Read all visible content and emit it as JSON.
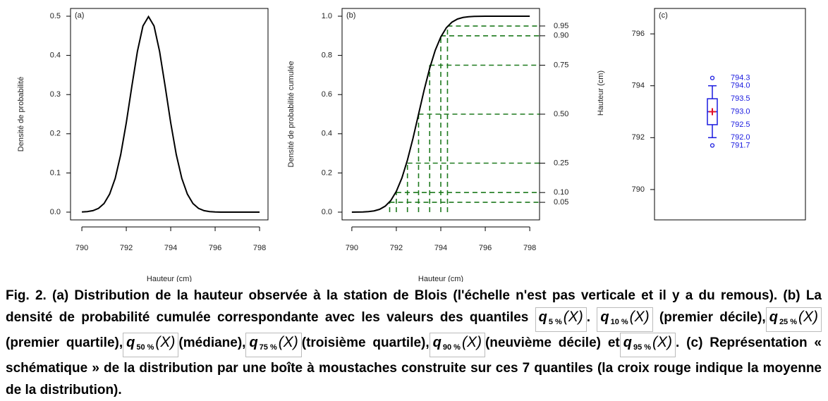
{
  "chart_data": [
    {
      "type": "line",
      "panel_label": "(a)",
      "xlabel": "Hauteur (cm)",
      "ylabel": "Densité de probabilité",
      "x": [
        790,
        790.25,
        790.5,
        790.75,
        791,
        791.25,
        791.5,
        791.75,
        792,
        792.25,
        792.5,
        792.75,
        793,
        793.25,
        793.5,
        793.75,
        794,
        794.25,
        794.5,
        794.75,
        795,
        795.25,
        795.5,
        795.75,
        796,
        796.25,
        796.5,
        796.75,
        797,
        797.25,
        797.5,
        797.75,
        798
      ],
      "values": [
        0.0004,
        0.0014,
        0.0038,
        0.0096,
        0.022,
        0.046,
        0.086,
        0.147,
        0.228,
        0.321,
        0.41,
        0.475,
        0.499,
        0.475,
        0.41,
        0.321,
        0.228,
        0.147,
        0.086,
        0.046,
        0.022,
        0.0096,
        0.0038,
        0.0014,
        0.0004,
        0,
        0,
        0,
        0,
        0,
        0,
        0,
        0
      ],
      "color": "#000000",
      "xlim": [
        789.49,
        798.38
      ],
      "ylim": [
        -0.0198,
        0.5198
      ],
      "xticks": [
        790,
        792,
        794,
        796,
        798
      ],
      "yticks": [
        {
          "value": 0,
          "label": "0.0"
        },
        0.1,
        0.2,
        0.3,
        0.4,
        0.5
      ]
    },
    {
      "type": "line",
      "panel_label": "(b)",
      "xlabel": "Hauteur (cm)",
      "ylabel": "Densité de probabilité cumulée",
      "x": [
        790,
        790.25,
        790.5,
        790.75,
        791,
        791.25,
        791.5,
        791.75,
        792,
        792.25,
        792.5,
        792.75,
        793,
        793.25,
        793.5,
        793.75,
        794,
        794.25,
        794.5,
        794.75,
        795,
        795.25,
        795.5,
        795.75,
        796,
        796.25,
        796.5,
        796.75,
        797,
        797.25,
        797.5,
        797.75,
        798
      ],
      "values": [
        0.0001,
        0.0003,
        0.0009,
        0.0025,
        0.0062,
        0.0143,
        0.0304,
        0.059,
        0.106,
        0.174,
        0.266,
        0.377,
        0.5,
        0.623,
        0.734,
        0.826,
        0.894,
        0.941,
        0.9696,
        0.9857,
        0.9938,
        0.9975,
        0.9991,
        0.9997,
        0.9999,
        1,
        1,
        1,
        1,
        1,
        1,
        1,
        1
      ],
      "color": "#000000",
      "quantile_x": [
        791.7,
        792,
        792.5,
        793,
        793.5,
        794,
        794.3
      ],
      "quantile_color": "#1e7a1e",
      "xlim": [
        789.56,
        798.44
      ],
      "ylim": [
        -0.0396,
        1.0396
      ],
      "y2lim": [
        -0.0396,
        1.0396
      ],
      "xticks": [
        790,
        792,
        794,
        796,
        798
      ],
      "yticks": [
        {
          "value": 0,
          "label": "0.0"
        },
        0.2,
        0.4,
        0.6,
        0.8,
        {
          "value": 1,
          "label": "1.0"
        }
      ],
      "y2ticks": [
        0.05,
        {
          "value": 0.1,
          "label": "0.10"
        },
        0.25,
        {
          "value": 0.5,
          "label": "0.50"
        },
        0.75,
        {
          "value": 0.9,
          "label": "0.90"
        },
        0.95
      ]
    },
    {
      "type": "box",
      "panel_label": "(c)",
      "ylabel": "Hauteur (cm)",
      "values": [
        791.7,
        792,
        792.5,
        793,
        793.5,
        794,
        794.3
      ],
      "value_labels": [
        "791.7",
        "792.0",
        "792.5",
        "793.0",
        "793.5",
        "794.0",
        "794.3"
      ],
      "mean": 793,
      "color": "#1a1adf",
      "mean_color": "#e0102a",
      "ylim": [
        788.83,
        796.98
      ],
      "yticks": [
        790,
        792,
        794,
        796
      ]
    }
  ],
  "caption": {
    "segments": [
      "Fig. 2. (a) Distribution de la hauteur observée à la station de Blois (l'échelle n'est pas verticale et il y a du remous). (b) La densité de probabilité cumulée correspondante avec les valeurs des quantiles ",
      {
        "symbol": "q",
        "sub": "5 %",
        "arg": "(X)"
      },
      ". ",
      {
        "symbol": "q",
        "sub": "10 %",
        "arg": "(X)"
      },
      " (premier décile),",
      {
        "symbol": "q",
        "sub": "25 %",
        "arg": "(X)"
      },
      "(premier quartile),",
      {
        "symbol": "q",
        "sub": "50 %",
        "arg": "(X)"
      },
      "(médiane),",
      {
        "symbol": "q",
        "sub": "75 %",
        "arg": "(X)"
      },
      "(troisième quartile),",
      {
        "symbol": "q",
        "sub": "90 %",
        "arg": "(X)"
      },
      "(neuvième décile) et",
      {
        "symbol": "q",
        "sub": "95 %",
        "arg": "(X)"
      },
      ". (c) Représentation « schématique » de la distribution par une boîte à moustaches construite sur ces 7 quantiles (la croix rouge indique la moyenne de la distribution)."
    ]
  }
}
